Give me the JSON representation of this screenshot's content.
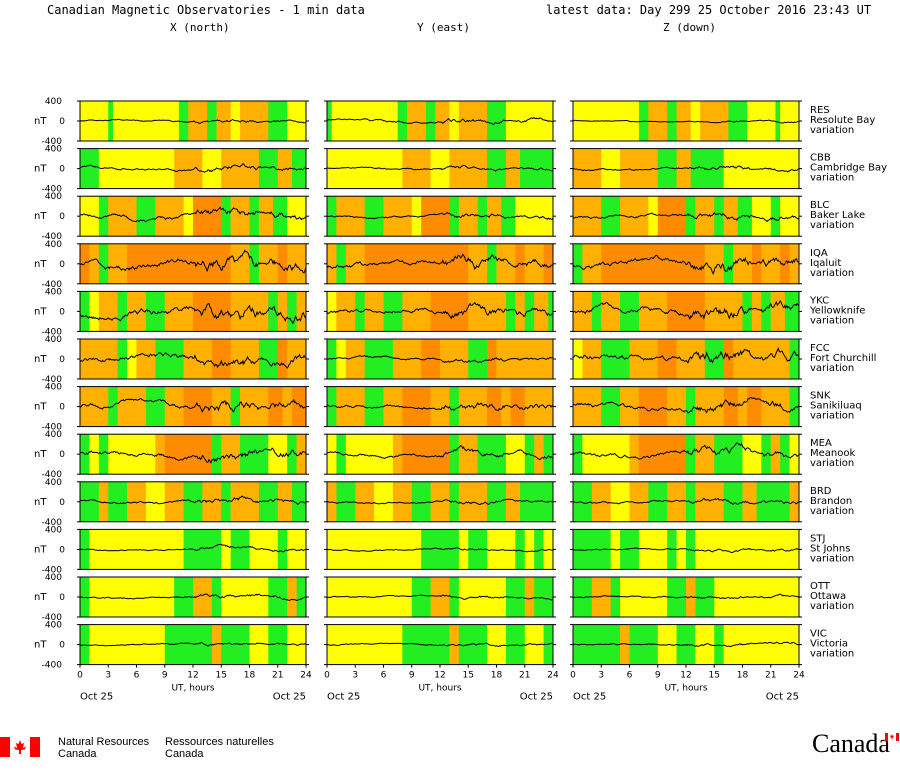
{
  "header": {
    "title": "Canadian Magnetic Observatories - 1 min data",
    "latest": "latest data: Day 299   25 October 2016 23:43 UT",
    "columns": [
      "X (north)",
      "Y (east)",
      "Z (down)"
    ]
  },
  "axis": {
    "y_unit": "nT",
    "y_ticks": [
      "400",
      "0",
      "-400"
    ],
    "x_ticks": [
      "0",
      "3",
      "6",
      "9",
      "12",
      "15",
      "18",
      "21",
      "24"
    ],
    "x_label": "UT, hours",
    "date_left": "Oct 25",
    "date_right": "Oct 25"
  },
  "activity_colors": {
    "quiet": "#22ee22",
    "unsettled": "#ffff00",
    "active": "#ffb000",
    "storm": "#ff8c00",
    "line": "#000000"
  },
  "chart_data": {
    "type": "line",
    "title": "Canadian Magnetic Observatories - 1 min data",
    "x": {
      "label": "UT, hours",
      "range": [
        0,
        24
      ]
    },
    "y": {
      "label": "nT",
      "range": [
        -400,
        400
      ]
    },
    "components": [
      "X (north)",
      "Y (east)",
      "Z (down)"
    ],
    "stations": [
      {
        "code": "RES",
        "name": "Resolute Bay",
        "suffix": "variation",
        "blocks": [
          "2x3",
          "1x0.5",
          "2x7",
          "1x1",
          "3x2",
          "1x1",
          "3x1.5",
          "2x1",
          "3x3",
          "1x2"
        ],
        "amp": [
          60,
          90,
          40
        ]
      },
      {
        "code": "CBB",
        "name": "Cambridge Bay",
        "suffix": "variation",
        "blocks": [
          "1x2",
          "2x8",
          "3x3",
          "2x2",
          "3x4",
          "1x2",
          "3x1.5",
          "1x1.5"
        ],
        "amp": [
          110,
          70,
          90
        ]
      },
      {
        "code": "BLC",
        "name": "Baker Lake",
        "suffix": "variation",
        "blocks": [
          "2x2",
          "1x1",
          "3x3",
          "1x2",
          "3x3",
          "2x1",
          "4x3",
          "1x1",
          "3x2",
          "1x1",
          "3x1.5",
          "1x1.5"
        ],
        "amp": [
          170,
          90,
          120
        ]
      },
      {
        "code": "IQA",
        "name": "Iqaluit",
        "suffix": "variation",
        "blocks": [
          "4x1",
          "3x1",
          "1x1",
          "3x2",
          "4x11",
          "3x2",
          "1x1",
          "3x2",
          "4x1",
          "3x2"
        ],
        "amp": [
          260,
          220,
          240
        ]
      },
      {
        "code": "YKC",
        "name": "Yellowknife",
        "suffix": "variation",
        "blocks": [
          "1x1",
          "2x1",
          "3x2",
          "1x1",
          "3x2",
          "1x2",
          "3x3",
          "4x4",
          "3x4",
          "1x1",
          "3x1",
          "1x1",
          "3x1.5",
          "1x1.5"
        ],
        "amp": [
          280,
          200,
          260
        ]
      },
      {
        "code": "FCC",
        "name": "Fort Churchill",
        "suffix": "variation",
        "blocks": [
          "3x4",
          "1x1",
          "2x1",
          "3x2",
          "1x3",
          "3x3",
          "4x2",
          "3x3",
          "1x2",
          "4x1",
          "3x2"
        ],
        "amp": [
          240,
          90,
          240
        ]
      },
      {
        "code": "SNK",
        "name": "Sanikiluaq",
        "suffix": "variation",
        "blocks": [
          "3x3",
          "1x1",
          "3x3",
          "1x2",
          "3x2",
          "4x3",
          "3x2",
          "1x1",
          "3x3",
          "4x1.5",
          "3x1",
          "4x1.5"
        ],
        "amp": [
          220,
          150,
          200
        ]
      },
      {
        "code": "MEA",
        "name": "Meanook",
        "suffix": "variation",
        "blocks": [
          "1x1",
          "2x1",
          "1x1",
          "2x5",
          "3x1",
          "4x5",
          "1x1",
          "3x2",
          "1x3",
          "2x2",
          "1x1",
          "3x1"
        ],
        "amp": [
          200,
          140,
          180
        ]
      },
      {
        "code": "BRD",
        "name": "Brandon",
        "suffix": "variation",
        "blocks": [
          "1x2",
          "3x1",
          "1x2",
          "3x2",
          "2x2",
          "3x2",
          "1x2",
          "3x2",
          "1x1",
          "3x3",
          "1x2",
          "3x1.5",
          "1x1.5"
        ],
        "amp": [
          110,
          80,
          90
        ]
      },
      {
        "code": "STJ",
        "name": "St Johns",
        "suffix": "variation",
        "blocks": [
          "1x1",
          "2x10",
          "1x4",
          "2x1",
          "1x2",
          "2x3",
          "1x1",
          "2x1"
        ],
        "amp": [
          70,
          60,
          60
        ]
      },
      {
        "code": "OTT",
        "name": "Ottawa",
        "suffix": "variation",
        "blocks": [
          "1x1",
          "2x9",
          "1x2",
          "3x2",
          "1x1",
          "2x5",
          "1x2",
          "3x1",
          "1x1"
        ],
        "amp": [
          80,
          60,
          60
        ]
      },
      {
        "code": "VIC",
        "name": "Victoria",
        "suffix": "variation",
        "blocks": [
          "1x1",
          "2x8",
          "1x5",
          "3x1",
          "1x3",
          "2x2",
          "1x2",
          "2x2"
        ],
        "amp": [
          60,
          50,
          60
        ]
      }
    ]
  },
  "footer": {
    "nrc_en_1": "Natural Resources",
    "nrc_en_2": "Canada",
    "nrc_fr_1": "Ressources naturelles",
    "nrc_fr_2": "Canada",
    "wordmark": "Canada",
    "flag_color": "#ff0000"
  }
}
